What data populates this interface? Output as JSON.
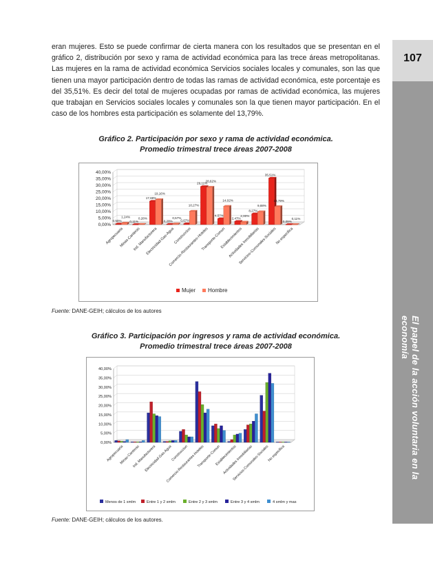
{
  "page_number": "107",
  "side_title": "El papel de la acción voluntaria en la economía",
  "body_paragraph": "eran mujeres. Esto se puede confirmar de cierta manera con los resultados que se presentan en el gráfico 2, distribución por sexo y rama de actividad económica para las trece áreas metropolitanas. Las mujeres en la rama de actividad económica Servicios sociales locales y comunales, son las que tienen una mayor participación dentro de todas las ramas de actividad económica, este porcentaje es del 35,51%. Es decir del total de mujeres ocupadas por ramas de actividad económica, las mujeres que trabajan en Servicios sociales locales y comunales son la que tienen mayor participación. En el caso de los hombres esta participación es solamente del 13,79%.",
  "figure2": {
    "caption_line1": "Gráfico 2. Participación por sexo y rama de actividad económica.",
    "caption_line2": "Promedio trimestral trece áreas 2007-2008",
    "source_label": "Fuente:",
    "source_text": " DANE-GEIH; cálculos de los autores"
  },
  "figure3": {
    "caption_line1": "Gráfico 3. Participación por ingresos y rama de actividad económica.",
    "caption_line2": "Promedio trimestral trece áreas 2007-2008",
    "source_label": "Fuente:",
    "source_text": " DANE-GEIH; cálculos de los autores."
  },
  "chart_data": [
    {
      "type": "bar",
      "categories": [
        "Agropecuaria",
        "Minas-Canteras",
        "Ind. Manufacturera",
        "Electricidad-Gas-Agua",
        "Construccion",
        "Comercio-Restaurantes-Hoteles",
        "Transporte-Comun",
        "Establecimientos",
        "Actividades Inmobiliarias",
        "Servicios-Comunales-Sociales",
        "No especifica"
      ],
      "series": [
        {
          "name": "Mujer",
          "values": [
            0.5,
            0.11,
            17.88,
            0.28,
            0.67,
            29.11,
            4.57,
            2.47,
            8.27,
            35.51,
            0.09
          ],
          "labels": [
            "0,50%",
            "0,11%",
            "17,88%",
            "0,28%",
            "0,67%",
            "29,11%",
            "4,57%",
            "2,47%",
            "8,27%",
            "35,51%",
            "0,09%"
          ]
        },
        {
          "name": "Hombre",
          "values": [
            1.24,
            0.28,
            19.16,
            0.57,
            10.27,
            28.62,
            14.02,
            2.0,
            9.88,
            13.79,
            0.11
          ],
          "labels": [
            "1,24%",
            "0,28%",
            "19,16%",
            "0,57%",
            "10,27%",
            "28,62%",
            "14,02%",
            "2,00%",
            "9,88%",
            "13,79%",
            "0,11%"
          ]
        }
      ],
      "colors": [
        "#e8241c",
        "#ff7a5c"
      ],
      "yticks": [
        "0,00%",
        "5,00%",
        "10,00%",
        "15,00%",
        "20,00%",
        "25,00%",
        "30,00%",
        "35,00%",
        "40,00%"
      ],
      "ylim": [
        0,
        40
      ],
      "legend_position": "bottom",
      "grid": true
    },
    {
      "type": "bar",
      "categories": [
        "Agropecuaria",
        "Minas-Canteras",
        "Ind. Manufacturera",
        "Electricidad-Gas-Agua",
        "Construccion",
        "Comercio-Restaurantes-Hoteles",
        "Transporte-Comun",
        "Establecimientos",
        "Actividades Inmobiliarias",
        "Servicios-Comunales-Sociales",
        "No especifica"
      ],
      "series": [
        {
          "name": "Menos de 1 smlm",
          "values": [
            1.0,
            0.3,
            16.0,
            0.5,
            6.0,
            33.0,
            9.0,
            0.5,
            7.0,
            25.5,
            0.2
          ]
        },
        {
          "name": "Entre 1 y 2 smlm",
          "values": [
            0.8,
            0.3,
            22.0,
            0.5,
            7.0,
            27.5,
            10.0,
            1.5,
            9.5,
            17.0,
            0.2
          ]
        },
        {
          "name": "Entre 2 y 3 smlm",
          "values": [
            0.6,
            0.3,
            15.5,
            0.8,
            4.0,
            20.5,
            7.5,
            4.0,
            10.0,
            32.5,
            0.2
          ]
        },
        {
          "name": "Entre 3 y 4 smlm",
          "values": [
            0.5,
            0.3,
            14.5,
            1.0,
            3.0,
            16.0,
            9.0,
            4.5,
            11.5,
            37.5,
            0.2
          ]
        },
        {
          "name": "4 smlm y mas",
          "values": [
            1.5,
            1.0,
            14.0,
            1.0,
            3.0,
            18.0,
            6.5,
            5.0,
            15.5,
            32.0,
            0.2
          ]
        }
      ],
      "colors": [
        "#2a2f9e",
        "#c0202a",
        "#6ab02c",
        "#27239a",
        "#3f8fd0"
      ],
      "yticks": [
        "0,00%",
        "5,00%",
        "10,00%",
        "15,00%",
        "20,00%",
        "25,00%",
        "30,00%",
        "35,00%",
        "40,00%"
      ],
      "ylim": [
        0,
        40
      ],
      "legend_position": "bottom",
      "grid": true
    }
  ]
}
